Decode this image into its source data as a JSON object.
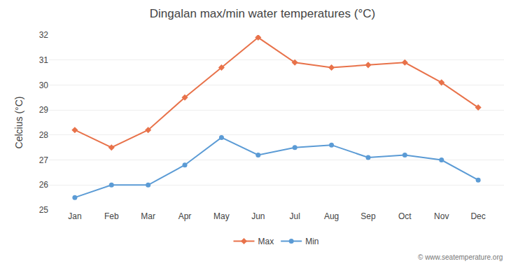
{
  "chart_data": {
    "type": "line",
    "title": "Dingalan max/min water temperatures (°C)",
    "y_label": "Celcius (°C)",
    "categories": [
      "Jan",
      "Feb",
      "Mar",
      "Apr",
      "May",
      "Jun",
      "Jul",
      "Aug",
      "Sep",
      "Oct",
      "Nov",
      "Dec"
    ],
    "series": [
      {
        "name": "Max",
        "color": "#e8724a",
        "marker": "diamond",
        "line_style": "solid",
        "values": [
          28.2,
          27.5,
          28.2,
          29.5,
          30.7,
          31.9,
          30.9,
          30.7,
          30.8,
          30.9,
          30.1,
          29.1
        ]
      },
      {
        "name": "Min",
        "color": "#5b9bd5",
        "marker": "circle",
        "line_style": "solid",
        "values": [
          25.5,
          26.0,
          26.0,
          26.8,
          27.9,
          27.2,
          27.5,
          27.6,
          27.1,
          27.2,
          27.0,
          26.2
        ]
      }
    ],
    "ylim": [
      25,
      32
    ],
    "yticks": [
      25,
      26,
      27,
      28,
      29,
      30,
      31,
      32
    ],
    "grid": true,
    "legend": "bottom",
    "annotations": [
      "© www.seatemperature.org"
    ]
  }
}
